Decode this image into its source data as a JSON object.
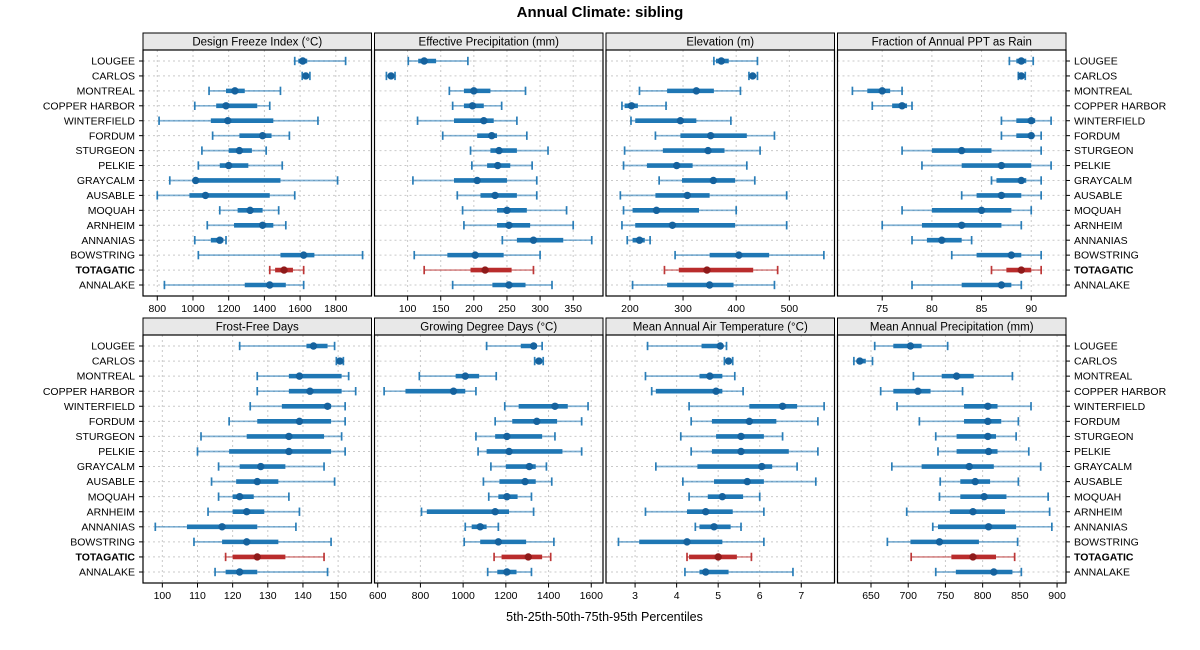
{
  "chart_data": {
    "type": "dotplot",
    "note": "Trellis plot of 5th-25th-50th-75th-95th percentile ranges per site; thin line = 5th-95th, thick bar = 25th-75th, dot = median. TOTAGATIC row highlighted red and bold.",
    "title": "Annual Climate: sibling",
    "caption": "5th-25th-50th-75th-95th Percentiles",
    "percentile_labels": [
      "5th",
      "25th",
      "50th",
      "75th",
      "95th"
    ],
    "legend_position": "none",
    "grid": "dashed",
    "highlight_site": "TOTAGATIC",
    "colors": {
      "series": "#1f77b4",
      "series_dot": "#15629e",
      "highlight": "#b92c2c",
      "highlight_dot": "#8f1a1a",
      "grid": "#c9c9c9",
      "strip_bg": "#e8e8e8",
      "border": "#000000",
      "text": "#000000"
    },
    "sites": [
      "LOUGEE",
      "CARLOS",
      "MONTREAL",
      "COPPER HARBOR",
      "WINTERFIELD",
      "FORDUM",
      "STURGEON",
      "PELKIE",
      "GRAYCALM",
      "AUSABLE",
      "MOQUAH",
      "ARNHEIM",
      "ANNANIAS",
      "BOWSTRING",
      "TOTAGATIC",
      "ANNALAKE"
    ],
    "panels": [
      {
        "label": "Design Freeze Index (°C)",
        "xlim": [
          720,
          2000
        ],
        "ticks": [
          800,
          1000,
          1200,
          1400,
          1600,
          1800
        ],
        "rows": [
          [
            1570,
            1590,
            1615,
            1640,
            1855
          ],
          [
            1612,
            1622,
            1632,
            1645,
            1655
          ],
          [
            1090,
            1185,
            1235,
            1290,
            1490
          ],
          [
            1010,
            1130,
            1185,
            1360,
            1430
          ],
          [
            810,
            1100,
            1195,
            1450,
            1700
          ],
          [
            1110,
            1260,
            1390,
            1440,
            1540
          ],
          [
            1050,
            1200,
            1260,
            1330,
            1410
          ],
          [
            1030,
            1150,
            1200,
            1310,
            1500
          ],
          [
            870,
            1000,
            1015,
            1490,
            1810
          ],
          [
            800,
            980,
            1070,
            1430,
            1570
          ],
          [
            1150,
            1250,
            1320,
            1390,
            1480
          ],
          [
            1080,
            1230,
            1390,
            1450,
            1520
          ],
          [
            1010,
            1100,
            1150,
            1170,
            1185
          ],
          [
            1030,
            1490,
            1620,
            1680,
            1950
          ],
          [
            1430,
            1460,
            1510,
            1560,
            1620
          ],
          [
            840,
            1290,
            1430,
            1520,
            1620
          ]
        ]
      },
      {
        "label": "Effective Precipitation (mm)",
        "xlim": [
          50,
          395
        ],
        "ticks": [
          100,
          150,
          200,
          250,
          300,
          350
        ],
        "rows": [
          [
            101,
            116,
            125,
            143,
            191
          ],
          [
            68,
            72,
            75,
            78,
            81
          ],
          [
            163,
            185,
            200,
            225,
            278
          ],
          [
            168,
            185,
            198,
            215,
            242
          ],
          [
            115,
            170,
            215,
            230,
            265
          ],
          [
            153,
            205,
            227,
            235,
            280
          ],
          [
            195,
            225,
            238,
            265,
            312
          ],
          [
            197,
            220,
            236,
            255,
            288
          ],
          [
            108,
            170,
            205,
            250,
            295
          ],
          [
            175,
            210,
            232,
            265,
            295
          ],
          [
            183,
            235,
            250,
            280,
            340
          ],
          [
            185,
            235,
            253,
            285,
            350
          ],
          [
            243,
            265,
            290,
            335,
            378
          ],
          [
            110,
            160,
            202,
            245,
            300
          ],
          [
            125,
            195,
            217,
            257,
            290
          ],
          [
            168,
            228,
            253,
            278,
            318
          ]
        ]
      },
      {
        "label": "Elevation (m)",
        "xlim": [
          155,
          585
        ],
        "ticks": [
          200,
          300,
          400,
          500
        ],
        "rows": [
          [
            358,
            362,
            372,
            386,
            440
          ],
          [
            424,
            428,
            431,
            436,
            440
          ],
          [
            218,
            270,
            325,
            358,
            408
          ],
          [
            185,
            190,
            203,
            215,
            268
          ],
          [
            202,
            210,
            295,
            325,
            390
          ],
          [
            248,
            295,
            352,
            420,
            472
          ],
          [
            190,
            262,
            347,
            378,
            445
          ],
          [
            188,
            232,
            288,
            318,
            420
          ],
          [
            255,
            298,
            357,
            398,
            435
          ],
          [
            182,
            248,
            308,
            350,
            495
          ],
          [
            188,
            205,
            250,
            330,
            400
          ],
          [
            185,
            210,
            280,
            398,
            495
          ],
          [
            195,
            205,
            218,
            228,
            238
          ],
          [
            285,
            350,
            405,
            462,
            565
          ],
          [
            265,
            292,
            345,
            432,
            478
          ],
          [
            205,
            270,
            350,
            395,
            472
          ]
        ]
      },
      {
        "label": "Fraction of Annual PPT as Rain",
        "xlim": [
          70.5,
          93.5
        ],
        "ticks": [
          75,
          80,
          85,
          90
        ],
        "rows": [
          [
            87.8,
            88.5,
            89,
            89.5,
            90.2
          ],
          [
            88.7,
            88.9,
            89,
            89.2,
            89.4
          ],
          [
            72,
            73.5,
            75,
            75.8,
            77
          ],
          [
            74,
            76,
            77,
            77.5,
            78
          ],
          [
            87,
            88.5,
            90,
            90.4,
            92
          ],
          [
            87,
            88.5,
            90,
            90.2,
            91
          ],
          [
            77,
            80,
            83,
            86,
            91
          ],
          [
            79,
            83,
            87,
            90,
            92
          ],
          [
            86,
            86.5,
            89,
            89.5,
            91
          ],
          [
            83,
            84.5,
            87,
            89,
            91
          ],
          [
            77,
            80,
            85,
            88,
            90
          ],
          [
            75,
            79,
            83,
            87,
            89
          ],
          [
            78,
            79.5,
            81,
            83,
            84
          ],
          [
            82,
            84.5,
            88,
            89,
            91
          ],
          [
            86,
            87.5,
            89,
            90,
            91
          ],
          [
            78,
            83,
            87,
            88,
            89
          ]
        ]
      },
      {
        "label": "Frost-Free Days",
        "xlim": [
          94.5,
          159.5
        ],
        "ticks": [
          100,
          110,
          120,
          130,
          140,
          150
        ],
        "rows": [
          [
            122,
            141,
            143,
            147,
            149
          ],
          [
            149.5,
            150,
            150.5,
            151,
            151.5
          ],
          [
            127,
            136,
            139,
            151,
            153
          ],
          [
            127,
            136,
            142,
            151,
            155
          ],
          [
            125,
            134,
            147,
            148,
            152
          ],
          [
            119,
            127,
            139,
            148,
            152
          ],
          [
            111,
            124,
            136,
            146,
            151
          ],
          [
            110,
            119,
            136,
            148,
            152
          ],
          [
            116,
            122,
            128,
            135,
            146
          ],
          [
            114,
            121,
            127,
            133,
            149
          ],
          [
            116,
            120,
            122,
            126,
            136
          ],
          [
            113,
            120,
            124,
            129,
            139
          ],
          [
            98,
            107,
            117,
            127,
            138
          ],
          [
            109,
            117,
            124,
            133,
            148
          ],
          [
            118,
            120,
            127,
            135,
            146
          ],
          [
            115,
            118,
            122,
            127,
            147
          ]
        ]
      },
      {
        "label": "Growing Degree Days (°C)",
        "xlim": [
          585,
          1655
        ],
        "ticks": [
          600,
          800,
          1000,
          1200,
          1400,
          1600
        ],
        "rows": [
          [
            1110,
            1270,
            1330,
            1345,
            1370
          ],
          [
            1335,
            1345,
            1355,
            1365,
            1375
          ],
          [
            795,
            965,
            1010,
            1075,
            1155
          ],
          [
            630,
            730,
            955,
            1010,
            1060
          ],
          [
            1195,
            1260,
            1430,
            1490,
            1585
          ],
          [
            1150,
            1230,
            1345,
            1440,
            1555
          ],
          [
            1060,
            1150,
            1205,
            1370,
            1430
          ],
          [
            1070,
            1110,
            1215,
            1465,
            1555
          ],
          [
            1130,
            1200,
            1310,
            1340,
            1390
          ],
          [
            1095,
            1170,
            1290,
            1340,
            1415
          ],
          [
            1120,
            1165,
            1205,
            1255,
            1320
          ],
          [
            805,
            830,
            1150,
            1215,
            1330
          ],
          [
            1010,
            1040,
            1080,
            1110,
            1165
          ],
          [
            1005,
            1080,
            1165,
            1295,
            1425
          ],
          [
            1145,
            1180,
            1305,
            1370,
            1410
          ],
          [
            1115,
            1160,
            1205,
            1250,
            1320
          ]
        ]
      },
      {
        "label": "Mean Annual Air Temperature (°C)",
        "xlim": [
          2.3,
          7.8
        ],
        "ticks": [
          3,
          4,
          5,
          6,
          7
        ],
        "rows": [
          [
            3.3,
            4.6,
            5.05,
            5.1,
            5.2
          ],
          [
            5.15,
            5.2,
            5.25,
            5.3,
            5.35
          ],
          [
            3.25,
            4.55,
            4.8,
            5.1,
            5.4
          ],
          [
            3.4,
            3.5,
            4.95,
            5.1,
            5.6
          ],
          [
            4.3,
            5.75,
            6.55,
            6.9,
            7.55
          ],
          [
            4.35,
            4.85,
            5.75,
            6.4,
            7.4
          ],
          [
            4.1,
            4.95,
            5.55,
            6.1,
            6.55
          ],
          [
            4.35,
            4.85,
            5.55,
            6.7,
            7.4
          ],
          [
            3.5,
            4.5,
            6.05,
            6.3,
            6.9
          ],
          [
            4.15,
            4.9,
            5.7,
            6.1,
            7.35
          ],
          [
            4.3,
            4.75,
            5.1,
            5.6,
            6.0
          ],
          [
            3.25,
            4.25,
            4.7,
            5.35,
            6.1
          ],
          [
            4.45,
            4.55,
            4.9,
            5.3,
            5.55
          ],
          [
            2.6,
            3.1,
            4.25,
            5.1,
            6.1
          ],
          [
            4.25,
            4.3,
            5.0,
            5.45,
            5.8
          ],
          [
            4.2,
            4.55,
            4.7,
            5.25,
            6.8
          ]
        ]
      },
      {
        "label": "Mean Annual Precipitation (mm)",
        "xlim": [
          605,
          912
        ],
        "ticks": [
          650,
          700,
          750,
          800,
          850,
          900
        ],
        "rows": [
          [
            655,
            680,
            703,
            718,
            753
          ],
          [
            627,
            631,
            635,
            643,
            652
          ],
          [
            707,
            745,
            765,
            788,
            840
          ],
          [
            663,
            680,
            713,
            730,
            773
          ],
          [
            685,
            775,
            807,
            820,
            865
          ],
          [
            715,
            775,
            807,
            825,
            848
          ],
          [
            737,
            765,
            807,
            818,
            845
          ],
          [
            740,
            765,
            808,
            820,
            862
          ],
          [
            678,
            718,
            782,
            815,
            878
          ],
          [
            743,
            770,
            790,
            810,
            848
          ],
          [
            742,
            770,
            802,
            832,
            888
          ],
          [
            698,
            756,
            787,
            830,
            890
          ],
          [
            733,
            740,
            808,
            845,
            893
          ],
          [
            672,
            703,
            742,
            795,
            847
          ],
          [
            704,
            758,
            787,
            818,
            843
          ],
          [
            737,
            764,
            815,
            840,
            852
          ]
        ]
      }
    ]
  }
}
